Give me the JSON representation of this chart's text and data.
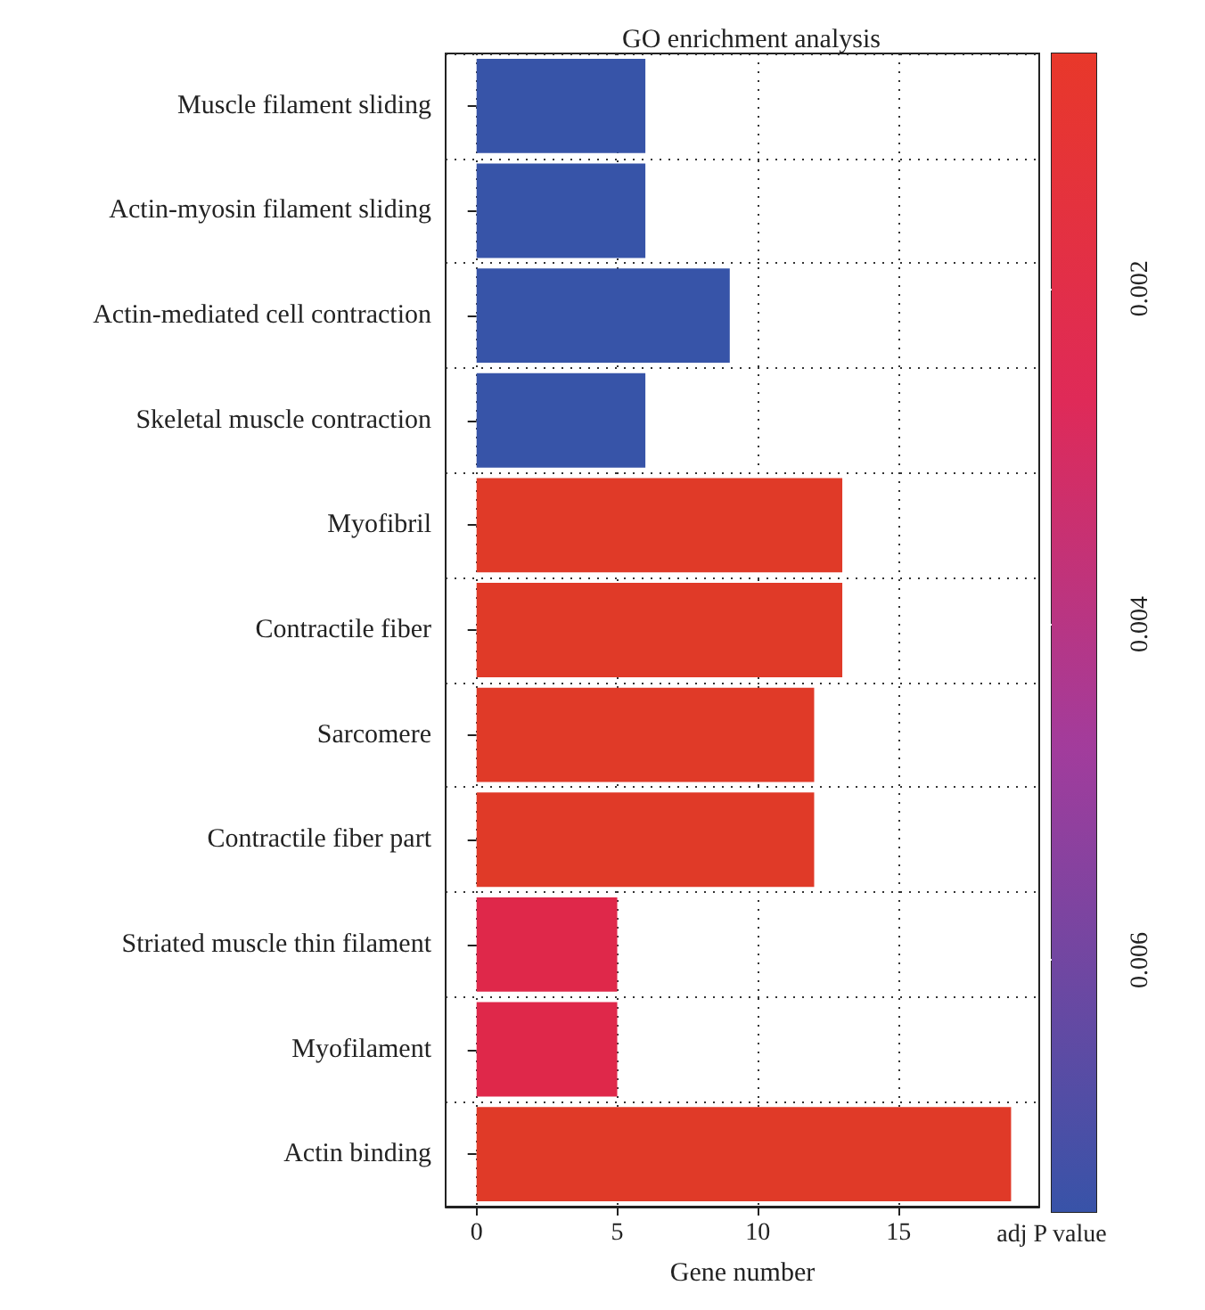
{
  "chart_data": {
    "type": "bar",
    "orientation": "horizontal",
    "title": "GO enrichment analysis",
    "xlabel": "Gene number",
    "clabel": "adj P value",
    "categories": [
      "Muscle filament sliding",
      "Actin-myosin filament sliding",
      "Actin-mediated cell contraction",
      "Skeletal muscle contraction",
      "Myofibril",
      "Contractile fiber",
      "Sarcomere",
      "Contractile fiber part",
      "Striated muscle thin filament",
      "Myofilament",
      "Actin binding"
    ],
    "values": [
      6,
      6,
      9,
      6,
      13,
      13,
      12,
      12,
      5,
      5,
      19
    ],
    "colors": [
      "#3754a8",
      "#3754a8",
      "#3754a8",
      "#3754a8",
      "#e03a28",
      "#e03a28",
      "#e03a28",
      "#e03a28",
      "#df284a",
      "#df284a",
      "#e03a28"
    ],
    "xlim": [
      -1.1,
      20
    ],
    "xticks": [
      0,
      5,
      10,
      15
    ],
    "grid": true,
    "clim": [
      0.0075,
      0.0006
    ],
    "cticks": [
      0.002,
      0.004,
      0.006
    ]
  }
}
